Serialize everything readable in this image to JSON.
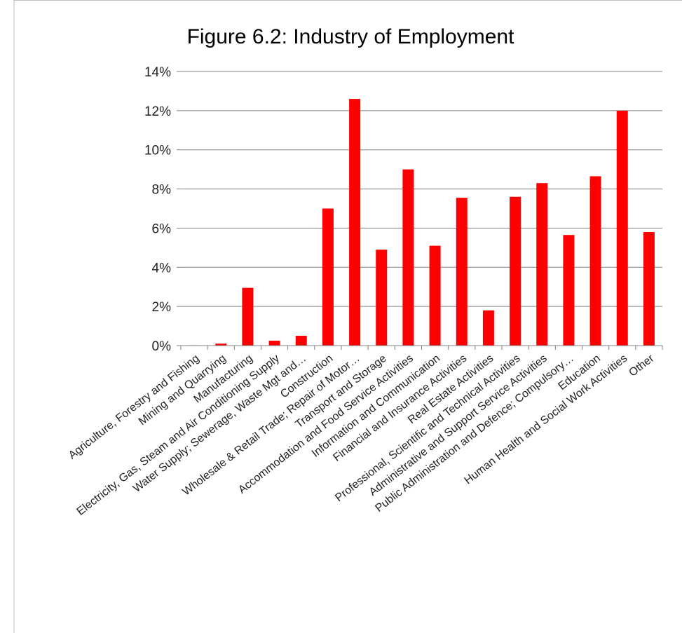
{
  "chart_data": {
    "type": "bar",
    "title": "Figure 6.2: Industry of Employment",
    "xlabel": "",
    "ylabel": "",
    "ylim": [
      0,
      14
    ],
    "y_ticks": [
      "0%",
      "2%",
      "4%",
      "6%",
      "8%",
      "10%",
      "12%",
      "14%"
    ],
    "grid": true,
    "legend": "none",
    "bar_color": "#ff0000",
    "categories": [
      "Agriculture, Forestry and Fishing",
      "Mining and Quarrying",
      "Manufacturing",
      "Electricity, Gas, Steam and Air Conditioning Supply",
      "Water Supply; Sewerage, Waste Mgt and…",
      "Construction",
      "Wholesale & Retail Trade; Repair of Motor…",
      "Transport and Storage",
      "Accommodation and Food Service Activities",
      "Information and Communication",
      "Financial and Insurance Activities",
      "Real Estate Activities",
      "Professional, Scientific and Technical Activities",
      "Administrative and Support Service Activities",
      "Public Administration and Defence; Compulsory…",
      "Education",
      "Human Health and Social Work Activities",
      "Other"
    ],
    "values": [
      0.02,
      0.1,
      2.95,
      0.25,
      0.5,
      7.0,
      12.6,
      4.9,
      9.0,
      5.1,
      7.55,
      1.8,
      7.6,
      8.3,
      5.65,
      8.65,
      12.0,
      5.8
    ]
  }
}
